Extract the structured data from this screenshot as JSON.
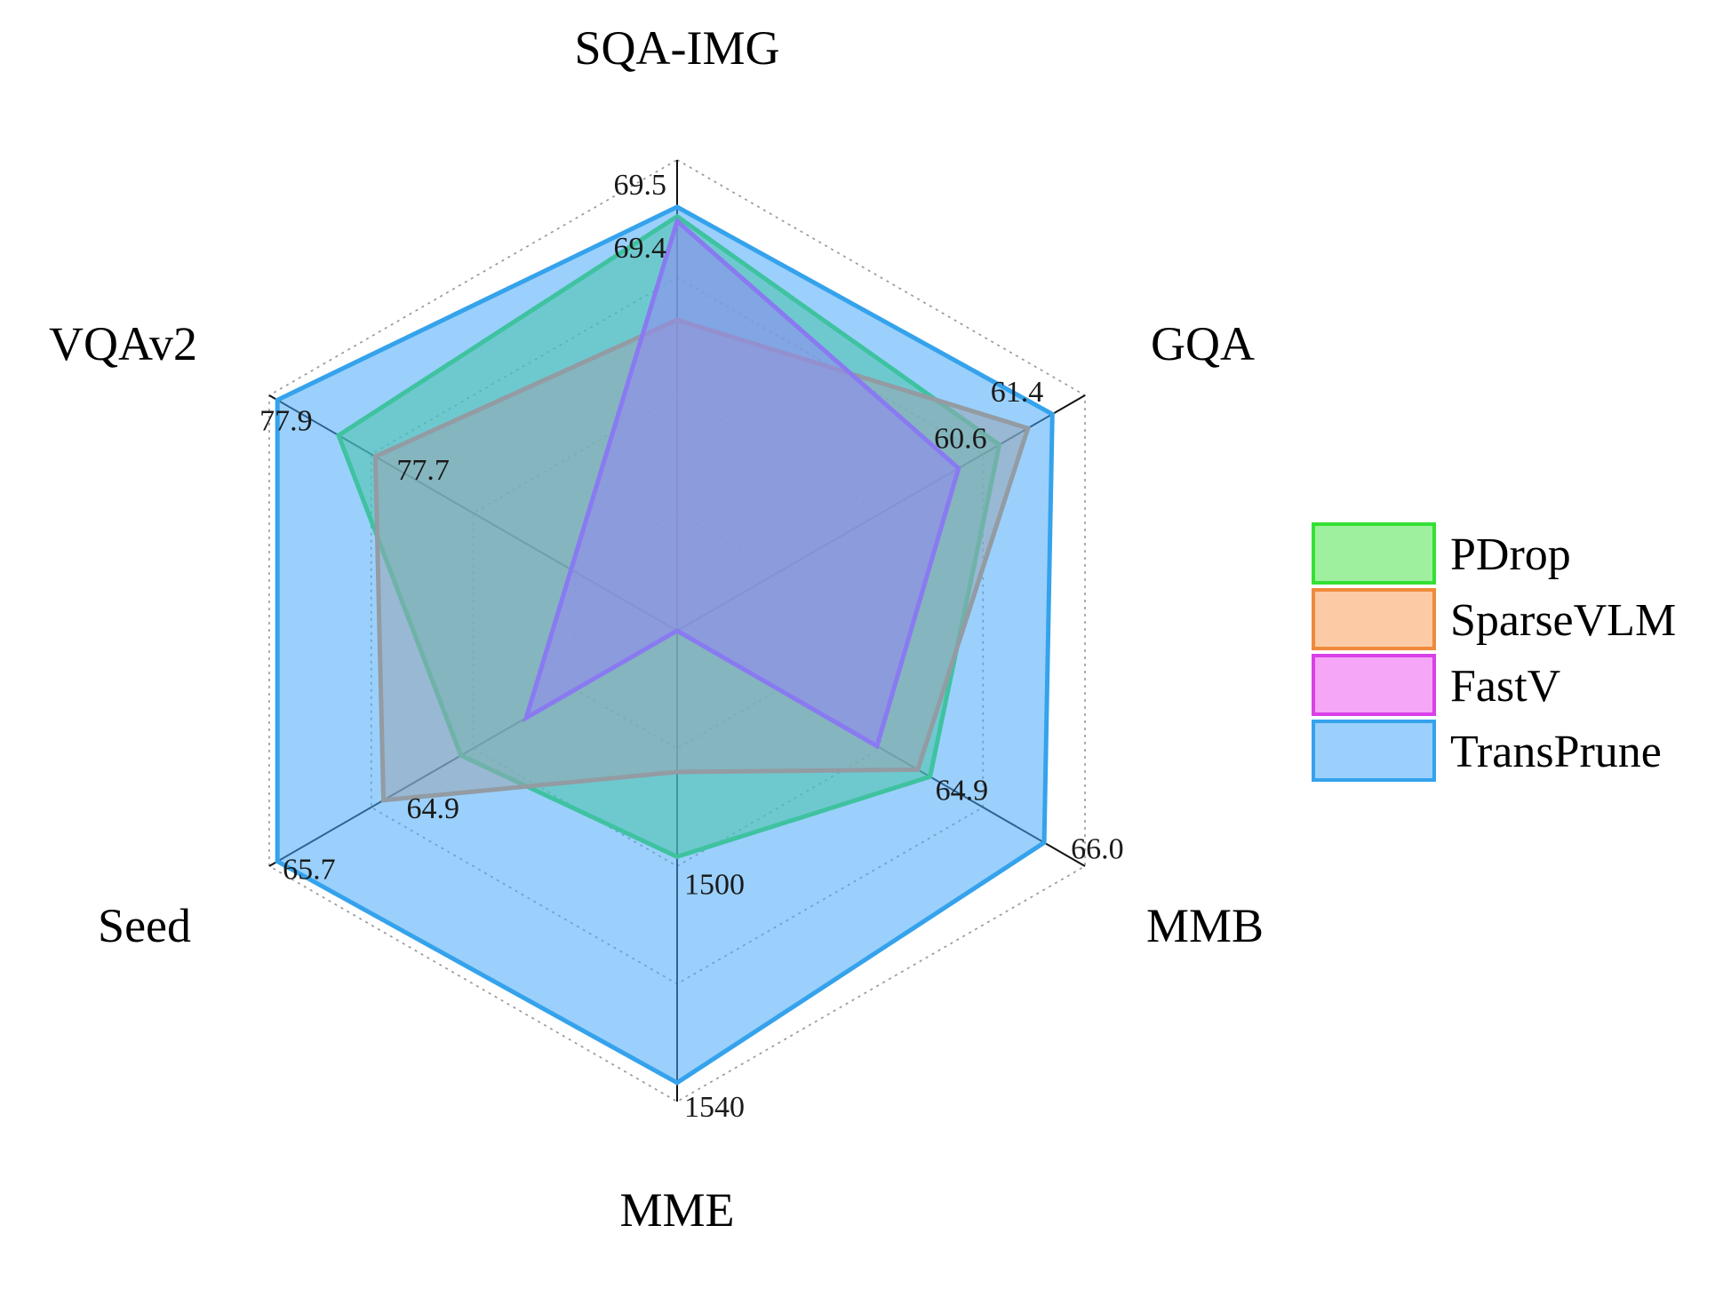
{
  "chart_data": {
    "type": "radar",
    "title": "",
    "axes": [
      "SQA-IMG",
      "GQA",
      "MMB",
      "MME",
      "Seed",
      "VQAv2"
    ],
    "axis_annotations": [
      [
        {
          "label": "69.5",
          "fraction": 0.9
        },
        {
          "label": "69.4",
          "fraction": 0.86
        }
      ],
      [
        {
          "label": "61.4",
          "fraction": 0.92
        },
        {
          "label": "60.6",
          "fraction": 0.79
        }
      ],
      [
        {
          "label": "64.9",
          "fraction": 0.62
        },
        {
          "label": "66.0",
          "fraction": 0.9
        }
      ],
      [
        {
          "label": "1500",
          "fraction": 0.48
        },
        {
          "label": "1540",
          "fraction": 0.96
        }
      ],
      [
        {
          "label": "64.9",
          "fraction": 0.72
        },
        {
          "label": "65.7",
          "fraction": 0.98
        }
      ],
      [
        {
          "label": "77.9",
          "fraction": 0.98
        },
        {
          "label": "77.7",
          "fraction": 0.74
        }
      ]
    ],
    "series": [
      {
        "name": "PDrop",
        "fill": "#4fe34f",
        "stroke": "#35e035",
        "values": [
          0.88,
          0.79,
          0.62,
          0.48,
          0.53,
          0.83
        ]
      },
      {
        "name": "SparseVLM",
        "fill": "#f9a05c",
        "stroke": "#ef8a3c",
        "values": [
          0.66,
          0.86,
          0.59,
          0.3,
          0.72,
          0.74
        ]
      },
      {
        "name": "FastV",
        "fill": "#ee5cee",
        "stroke": "#d940e8",
        "values": [
          0.87,
          0.69,
          0.49,
          0.0,
          0.37,
          0.26
        ]
      },
      {
        "name": "TransPrune",
        "fill": "#47a9f8",
        "stroke": "#35a2ec",
        "values": [
          0.9,
          0.92,
          0.9,
          0.96,
          0.98,
          0.98
        ]
      }
    ],
    "fill_opacity": 0.55,
    "grid": true,
    "legend_position": "right"
  }
}
